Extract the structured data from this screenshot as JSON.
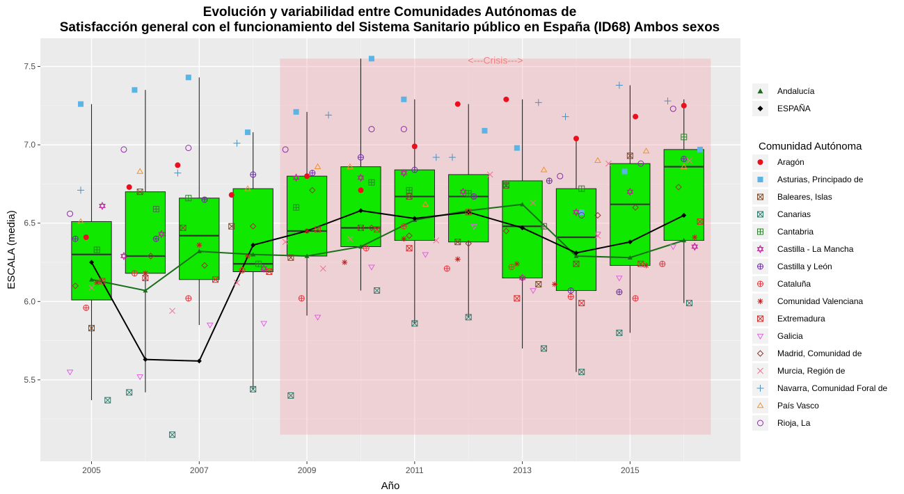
{
  "chart_data": {
    "type": "box",
    "title": "Evolución y variabilidad entre Comunidades Autónomas de",
    "subtitle": "Satisfacción general con el funcionamiento del Sistema Sanitario público en España (ID68) Ambos sexos",
    "xlabel": "Año",
    "ylabel": "ESCALA (media)",
    "x_ticks": [
      "2005",
      "2007",
      "2009",
      "2011",
      "2013",
      "2015"
    ],
    "y_ticks": [
      "5.5",
      "6.0",
      "6.5",
      "7.0",
      "7.5"
    ],
    "xlim": [
      2004.05,
      2017.05
    ],
    "ylim": [
      4.98,
      7.68
    ],
    "grid": true,
    "legend_position": "right",
    "crisis": {
      "label": "<---Crisis--->",
      "x_range": [
        2008.5,
        2016.5
      ],
      "y_range": [
        5.15,
        7.55
      ],
      "color": "#f4a0a8"
    },
    "boxes": [
      {
        "year": 2005,
        "q1": 6.01,
        "median": 6.3,
        "q3": 6.51,
        "wmin": 5.37,
        "wmax": 7.26
      },
      {
        "year": 2006,
        "q1": 6.18,
        "median": 6.29,
        "q3": 6.7,
        "wmin": 5.42,
        "wmax": 7.35
      },
      {
        "year": 2007,
        "q1": 6.14,
        "median": 6.42,
        "q3": 6.66,
        "wmin": 5.85,
        "wmax": 7.43
      },
      {
        "year": 2008,
        "q1": 6.19,
        "median": 6.24,
        "q3": 6.72,
        "wmin": 5.44,
        "wmax": 7.08
      },
      {
        "year": 2009,
        "q1": 6.29,
        "median": 6.45,
        "q3": 6.8,
        "wmin": 5.91,
        "wmax": 7.21
      },
      {
        "year": 2010,
        "q1": 6.35,
        "median": 6.47,
        "q3": 6.86,
        "wmin": 6.07,
        "wmax": 7.55
      },
      {
        "year": 2011,
        "q1": 6.39,
        "median": 6.67,
        "q3": 6.84,
        "wmin": 5.86,
        "wmax": 7.29
      },
      {
        "year": 2012,
        "q1": 6.38,
        "median": 6.67,
        "q3": 6.81,
        "wmin": 5.9,
        "wmax": 7.26
      },
      {
        "year": 2013,
        "q1": 6.15,
        "median": 6.48,
        "q3": 6.77,
        "wmin": 5.7,
        "wmax": 7.29
      },
      {
        "year": 2014,
        "q1": 6.07,
        "median": 6.41,
        "q3": 6.72,
        "wmin": 5.55,
        "wmax": 7.04
      },
      {
        "year": 2015,
        "q1": 6.23,
        "median": 6.62,
        "q3": 6.88,
        "wmin": 5.8,
        "wmax": 7.38
      },
      {
        "year": 2016,
        "q1": 6.39,
        "median": 6.86,
        "q3": 6.97,
        "wmin": 5.99,
        "wmax": 7.29
      }
    ],
    "box_fill": "#11e800",
    "lines": [
      {
        "name": "Andalucía",
        "color": "#1a6e1a",
        "shape": "triangle",
        "x": [
          2005,
          2006,
          2007,
          2008,
          2009,
          2010,
          2011,
          2012,
          2013,
          2014,
          2015,
          2016
        ],
        "y": [
          6.14,
          6.07,
          6.32,
          6.3,
          6.29,
          6.35,
          6.52,
          6.58,
          6.62,
          6.29,
          6.28,
          6.39
        ]
      },
      {
        "name": "ESPAÑA",
        "color": "#000000",
        "shape": "diamond",
        "x": [
          2005,
          2006,
          2007,
          2008,
          2009,
          2010,
          2011,
          2012,
          2013,
          2014,
          2015,
          2016
        ],
        "y": [
          6.25,
          5.63,
          5.62,
          6.36,
          6.45,
          6.58,
          6.53,
          6.57,
          6.47,
          6.31,
          6.38,
          6.55
        ]
      }
    ],
    "legend_title": "Comunidad Autónoma",
    "series": [
      {
        "name": "Aragón",
        "color": "#e8101e",
        "shape": "circle-filled",
        "points": [
          [
            2004.9,
            6.41
          ],
          [
            2005.7,
            6.73
          ],
          [
            2006.6,
            6.87
          ],
          [
            2007.6,
            6.68
          ],
          [
            2009.0,
            6.8
          ],
          [
            2010.0,
            6.71
          ],
          [
            2011.0,
            6.99
          ],
          [
            2011.8,
            7.26
          ],
          [
            2012.7,
            7.29
          ],
          [
            2014.0,
            7.04
          ],
          [
            2015.1,
            7.18
          ],
          [
            2016.0,
            7.25
          ]
        ]
      },
      {
        "name": "Asturias, Principado de",
        "color": "#5ab4e5",
        "shape": "square-filled",
        "points": [
          [
            2004.8,
            7.26
          ],
          [
            2005.8,
            7.35
          ],
          [
            2006.8,
            7.43
          ],
          [
            2007.9,
            7.08
          ],
          [
            2008.8,
            7.21
          ],
          [
            2010.2,
            7.55
          ],
          [
            2010.8,
            7.29
          ],
          [
            2012.3,
            7.09
          ],
          [
            2012.9,
            6.98
          ],
          [
            2014.1,
            6.57
          ],
          [
            2014.9,
            6.83
          ],
          [
            2016.3,
            6.97
          ]
        ]
      },
      {
        "name": "Baleares, Islas",
        "color": "#7a4a2a",
        "shape": "square-x",
        "points": [
          [
            2005.0,
            5.83
          ],
          [
            2005.9,
            6.7
          ],
          [
            2006.7,
            6.47
          ],
          [
            2007.6,
            6.48
          ],
          [
            2008.7,
            6.28
          ],
          [
            2010.0,
            6.47
          ],
          [
            2010.9,
            6.67
          ],
          [
            2011.8,
            6.38
          ],
          [
            2012.7,
            6.74
          ],
          [
            2013.3,
            6.11
          ],
          [
            2014.0,
            6.24
          ],
          [
            2015.0,
            6.93
          ]
        ]
      },
      {
        "name": "Canarias",
        "color": "#2a7a6a",
        "shape": "square-x",
        "points": [
          [
            2005.3,
            5.37
          ],
          [
            2005.7,
            5.42
          ],
          [
            2006.5,
            5.15
          ],
          [
            2008.0,
            5.44
          ],
          [
            2008.7,
            5.4
          ],
          [
            2010.3,
            6.07
          ],
          [
            2011.0,
            5.86
          ],
          [
            2012.0,
            5.9
          ],
          [
            2013.4,
            5.7
          ],
          [
            2014.1,
            5.55
          ],
          [
            2014.8,
            5.8
          ],
          [
            2016.1,
            5.99
          ]
        ]
      },
      {
        "name": "Cantabria",
        "color": "#2f7f2f",
        "shape": "square-plus",
        "points": [
          [
            2005.1,
            6.33
          ],
          [
            2006.2,
            6.59
          ],
          [
            2006.8,
            6.66
          ],
          [
            2008.1,
            6.24
          ],
          [
            2008.8,
            6.6
          ],
          [
            2010.2,
            6.76
          ],
          [
            2010.9,
            6.71
          ],
          [
            2012.0,
            6.69
          ],
          [
            2012.7,
            6.75
          ],
          [
            2013.4,
            6.48
          ],
          [
            2014.1,
            6.72
          ],
          [
            2016.0,
            7.05
          ]
        ]
      },
      {
        "name": "Castilla - La Mancha",
        "color": "#c0209a",
        "shape": "star-david",
        "points": [
          [
            2005.2,
            6.61
          ],
          [
            2005.6,
            6.29
          ],
          [
            2006.3,
            6.43
          ],
          [
            2008.2,
            6.21
          ],
          [
            2008.8,
            6.79
          ],
          [
            2010.0,
            6.79
          ],
          [
            2010.8,
            6.82
          ],
          [
            2011.9,
            6.7
          ],
          [
            2013.0,
            6.15
          ],
          [
            2014.0,
            6.57
          ],
          [
            2015.0,
            6.7
          ],
          [
            2016.2,
            6.35
          ]
        ]
      },
      {
        "name": "Castilla y León",
        "color": "#6a2aa0",
        "shape": "circle-plus",
        "points": [
          [
            2004.7,
            6.4
          ],
          [
            2006.2,
            6.4
          ],
          [
            2007.1,
            6.65
          ],
          [
            2008.0,
            6.81
          ],
          [
            2009.1,
            6.82
          ],
          [
            2010.0,
            6.92
          ],
          [
            2011.0,
            6.84
          ],
          [
            2012.1,
            6.67
          ],
          [
            2013.5,
            6.77
          ],
          [
            2013.9,
            6.07
          ],
          [
            2014.8,
            6.06
          ],
          [
            2016.0,
            6.91
          ]
        ]
      },
      {
        "name": "Cataluña",
        "color": "#e8303a",
        "shape": "circle-plus",
        "points": [
          [
            2004.9,
            5.96
          ],
          [
            2005.8,
            6.18
          ],
          [
            2006.8,
            6.02
          ],
          [
            2007.8,
            6.2
          ],
          [
            2008.9,
            6.02
          ],
          [
            2010.1,
            6.34
          ],
          [
            2010.8,
            6.48
          ],
          [
            2011.6,
            6.21
          ],
          [
            2012.8,
            6.22
          ],
          [
            2013.9,
            6.03
          ],
          [
            2015.1,
            6.02
          ],
          [
            2015.6,
            6.24
          ]
        ]
      },
      {
        "name": "Comunidad Valenciana",
        "color": "#c02020",
        "shape": "asterisk",
        "points": [
          [
            2005.1,
            6.12
          ],
          [
            2006.0,
            6.18
          ],
          [
            2007.0,
            6.36
          ],
          [
            2007.9,
            6.29
          ],
          [
            2009.0,
            6.45
          ],
          [
            2009.7,
            6.25
          ],
          [
            2010.8,
            6.4
          ],
          [
            2011.8,
            6.27
          ],
          [
            2012.9,
            6.24
          ],
          [
            2013.6,
            6.11
          ],
          [
            2015.3,
            6.23
          ],
          [
            2016.2,
            6.41
          ]
        ]
      },
      {
        "name": "Extremadura",
        "color": "#d03030",
        "shape": "square-x",
        "points": [
          [
            2005.2,
            6.13
          ],
          [
            2006.0,
            6.15
          ],
          [
            2007.3,
            6.14
          ],
          [
            2008.3,
            6.19
          ],
          [
            2009.2,
            6.46
          ],
          [
            2010.3,
            6.46
          ],
          [
            2010.9,
            6.34
          ],
          [
            2012.0,
            6.57
          ],
          [
            2012.9,
            6.02
          ],
          [
            2014.1,
            5.99
          ],
          [
            2015.2,
            6.24
          ],
          [
            2016.3,
            6.51
          ]
        ]
      },
      {
        "name": "Galicia",
        "color": "#e060e0",
        "shape": "triangle-down",
        "points": [
          [
            2004.6,
            5.55
          ],
          [
            2005.9,
            5.52
          ],
          [
            2007.2,
            5.85
          ],
          [
            2008.2,
            5.86
          ],
          [
            2009.2,
            5.9
          ],
          [
            2010.2,
            6.22
          ],
          [
            2011.2,
            6.3
          ],
          [
            2012.1,
            6.48
          ],
          [
            2013.2,
            6.07
          ],
          [
            2014.4,
            6.43
          ],
          [
            2014.8,
            6.15
          ],
          [
            2015.8,
            6.35
          ]
        ]
      },
      {
        "name": "Madrid, Comunidad de",
        "color": "#8a3a2a",
        "shape": "diamond-open",
        "points": [
          [
            2004.7,
            6.1
          ],
          [
            2006.1,
            6.29
          ],
          [
            2007.1,
            6.23
          ],
          [
            2008.0,
            6.48
          ],
          [
            2009.1,
            6.71
          ],
          [
            2010.2,
            6.47
          ],
          [
            2010.9,
            6.42
          ],
          [
            2012.0,
            6.37
          ],
          [
            2012.7,
            6.45
          ],
          [
            2014.4,
            6.55
          ],
          [
            2015.1,
            6.6
          ],
          [
            2015.9,
            6.73
          ]
        ]
      },
      {
        "name": "Murcia, Región de",
        "color": "#f07090",
        "shape": "x",
        "points": [
          [
            2005.0,
            6.09
          ],
          [
            2006.5,
            5.94
          ],
          [
            2007.7,
            6.12
          ],
          [
            2008.6,
            6.38
          ],
          [
            2009.3,
            6.21
          ],
          [
            2009.8,
            6.4
          ],
          [
            2011.4,
            6.39
          ],
          [
            2012.4,
            6.81
          ],
          [
            2013.2,
            6.63
          ],
          [
            2014.4,
            6.42
          ],
          [
            2014.6,
            6.88
          ],
          [
            2016.1,
            6.9
          ]
        ]
      },
      {
        "name": "Navarra, Comunidad Foral de",
        "color": "#4a90c0",
        "shape": "plus",
        "points": [
          [
            2004.8,
            6.71
          ],
          [
            2006.6,
            6.82
          ],
          [
            2007.7,
            7.01
          ],
          [
            2009.4,
            7.19
          ],
          [
            2011.4,
            6.92
          ],
          [
            2011.7,
            6.92
          ],
          [
            2013.3,
            7.27
          ],
          [
            2013.8,
            7.18
          ],
          [
            2014.8,
            7.38
          ],
          [
            2015.7,
            7.28
          ]
        ]
      },
      {
        "name": "País Vasco",
        "color": "#f09030",
        "shape": "triangle-open",
        "points": [
          [
            2004.8,
            6.51
          ],
          [
            2005.9,
            6.83
          ],
          [
            2007.9,
            6.72
          ],
          [
            2009.2,
            6.86
          ],
          [
            2009.8,
            6.86
          ],
          [
            2011.2,
            6.62
          ],
          [
            2013.4,
            6.84
          ],
          [
            2014.4,
            6.9
          ],
          [
            2015.3,
            6.96
          ],
          [
            2016.0,
            6.86
          ]
        ]
      },
      {
        "name": "Rioja, La",
        "color": "#8a2aa0",
        "shape": "circle-open",
        "points": [
          [
            2004.6,
            6.56
          ],
          [
            2005.6,
            6.97
          ],
          [
            2006.8,
            6.98
          ],
          [
            2008.6,
            6.97
          ],
          [
            2010.2,
            7.1
          ],
          [
            2010.8,
            7.1
          ],
          [
            2012.1,
            6.67
          ],
          [
            2013.7,
            6.8
          ],
          [
            2014.1,
            6.55
          ],
          [
            2015.2,
            6.88
          ],
          [
            2015.8,
            7.23
          ]
        ]
      }
    ]
  }
}
